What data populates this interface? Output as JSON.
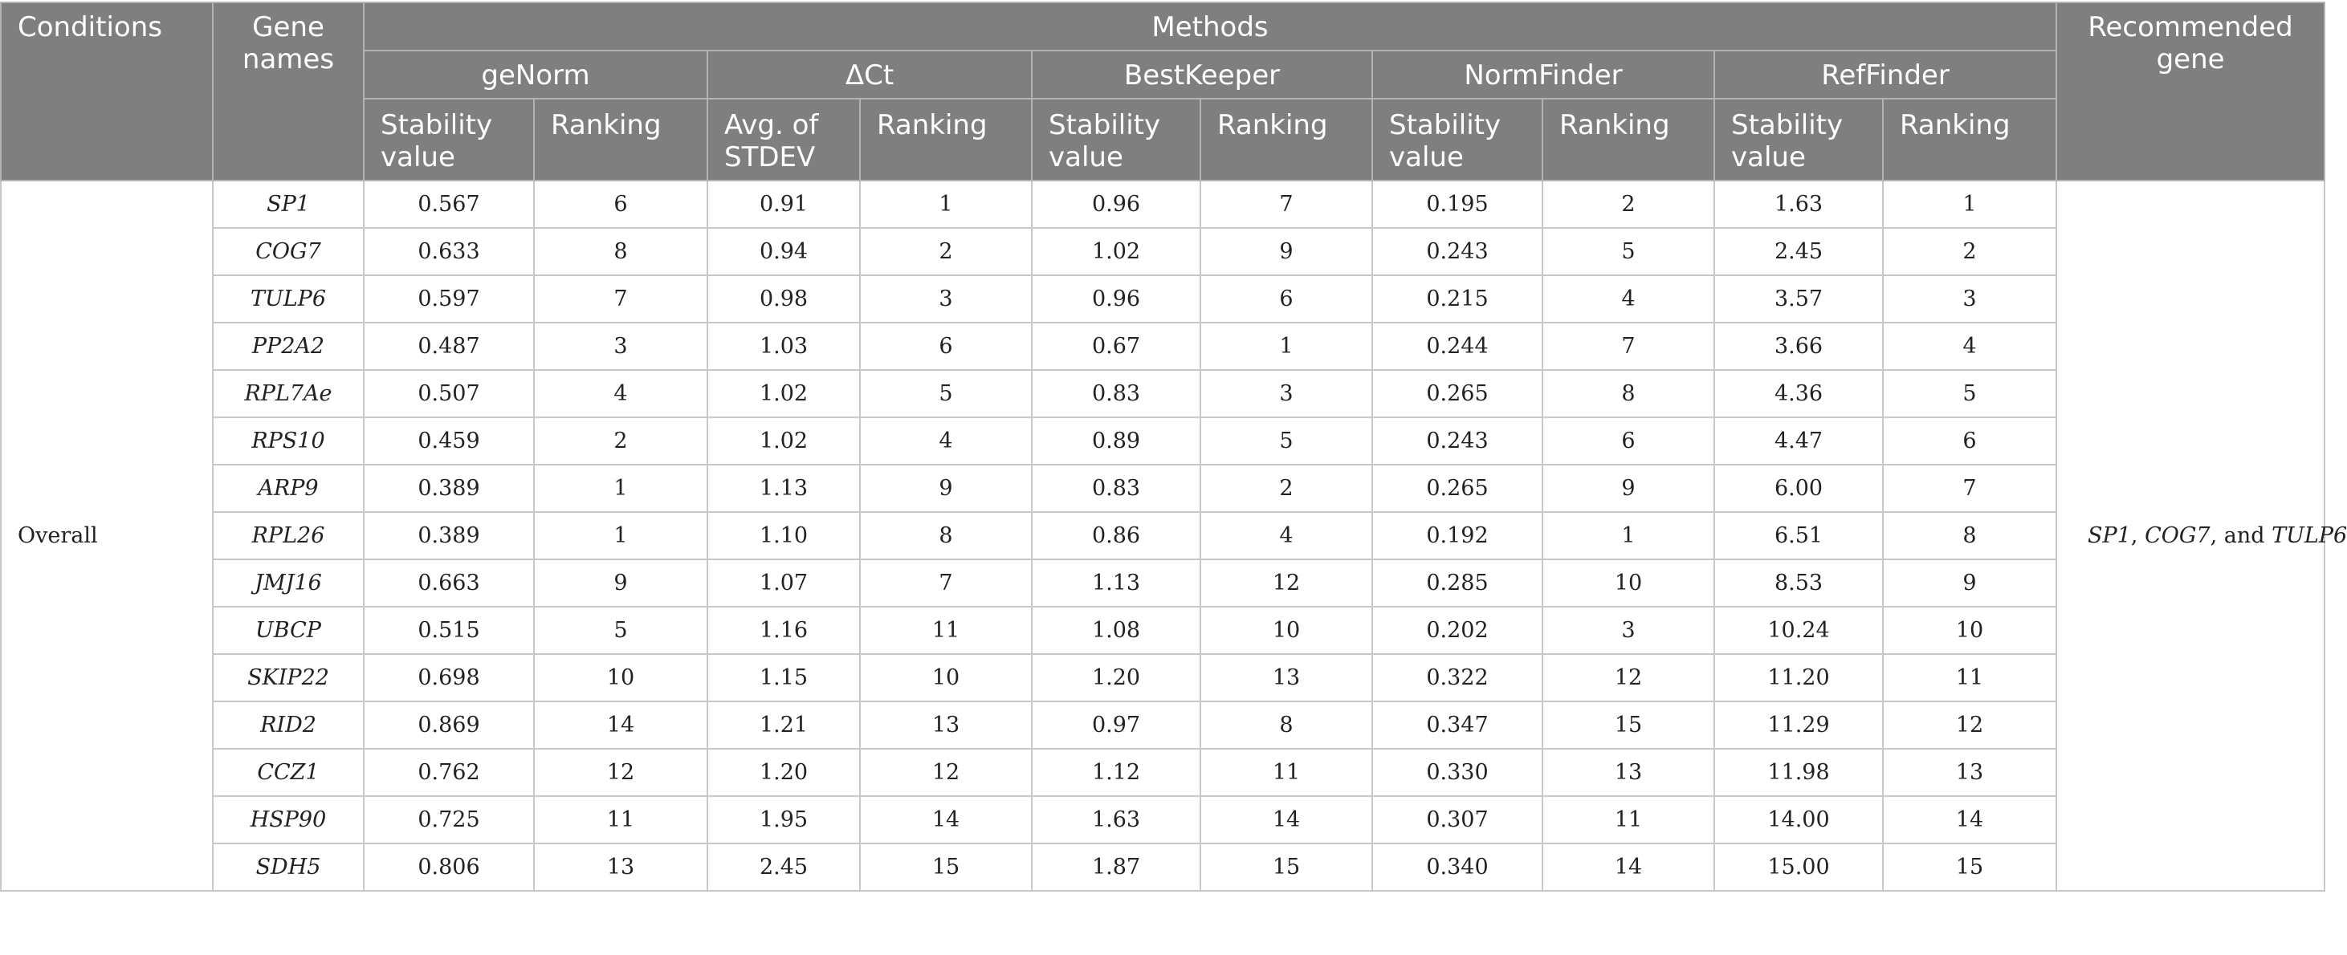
{
  "headers": {
    "conditions": "Conditions",
    "gene_names": "Gene names",
    "methods": "Methods",
    "recommended_gene": "Recommended gene",
    "methods_list": [
      "geNorm",
      "ΔCt",
      "BestKeeper",
      "NormFinder",
      "RefFinder"
    ],
    "sub": {
      "genorm_value": "Stability value",
      "genorm_rank": "Ranking",
      "dct_value": "Avg. of STDEV",
      "dct_rank": "Ranking",
      "bestkeeper_value": "Stability value",
      "bestkeeper_rank": "Ranking",
      "normfinder_value": "Stability value",
      "normfinder_rank": "Ranking",
      "reffinder_value": "Stability value",
      "reffinder_rank": "Ranking"
    }
  },
  "condition": "Overall",
  "recommended": {
    "gene1": "SP1",
    "sep1": ", ",
    "gene2": "COG7",
    "sep2": ", and ",
    "gene3": "TULP6"
  },
  "rows": [
    {
      "gene": "SP1",
      "genorm_value": "0.567",
      "genorm_rank": "6",
      "dct_value": "0.91",
      "dct_rank": "1",
      "bestkeeper_value": "0.96",
      "bestkeeper_rank": "7",
      "normfinder_value": "0.195",
      "normfinder_rank": "2",
      "reffinder_value": "1.63",
      "reffinder_rank": "1"
    },
    {
      "gene": "COG7",
      "genorm_value": "0.633",
      "genorm_rank": "8",
      "dct_value": "0.94",
      "dct_rank": "2",
      "bestkeeper_value": "1.02",
      "bestkeeper_rank": "9",
      "normfinder_value": "0.243",
      "normfinder_rank": "5",
      "reffinder_value": "2.45",
      "reffinder_rank": "2"
    },
    {
      "gene": "TULP6",
      "genorm_value": "0.597",
      "genorm_rank": "7",
      "dct_value": "0.98",
      "dct_rank": "3",
      "bestkeeper_value": "0.96",
      "bestkeeper_rank": "6",
      "normfinder_value": "0.215",
      "normfinder_rank": "4",
      "reffinder_value": "3.57",
      "reffinder_rank": "3"
    },
    {
      "gene": "PP2A2",
      "genorm_value": "0.487",
      "genorm_rank": "3",
      "dct_value": "1.03",
      "dct_rank": "6",
      "bestkeeper_value": "0.67",
      "bestkeeper_rank": "1",
      "normfinder_value": "0.244",
      "normfinder_rank": "7",
      "reffinder_value": "3.66",
      "reffinder_rank": "4"
    },
    {
      "gene": "RPL7Ae",
      "genorm_value": "0.507",
      "genorm_rank": "4",
      "dct_value": "1.02",
      "dct_rank": "5",
      "bestkeeper_value": "0.83",
      "bestkeeper_rank": "3",
      "normfinder_value": "0.265",
      "normfinder_rank": "8",
      "reffinder_value": "4.36",
      "reffinder_rank": "5"
    },
    {
      "gene": "RPS10",
      "genorm_value": "0.459",
      "genorm_rank": "2",
      "dct_value": "1.02",
      "dct_rank": "4",
      "bestkeeper_value": "0.89",
      "bestkeeper_rank": "5",
      "normfinder_value": "0.243",
      "normfinder_rank": "6",
      "reffinder_value": "4.47",
      "reffinder_rank": "6"
    },
    {
      "gene": "ARP9",
      "genorm_value": "0.389",
      "genorm_rank": "1",
      "dct_value": "1.13",
      "dct_rank": "9",
      "bestkeeper_value": "0.83",
      "bestkeeper_rank": "2",
      "normfinder_value": "0.265",
      "normfinder_rank": "9",
      "reffinder_value": "6.00",
      "reffinder_rank": "7"
    },
    {
      "gene": "RPL26",
      "genorm_value": "0.389",
      "genorm_rank": "1",
      "dct_value": "1.10",
      "dct_rank": "8",
      "bestkeeper_value": "0.86",
      "bestkeeper_rank": "4",
      "normfinder_value": "0.192",
      "normfinder_rank": "1",
      "reffinder_value": "6.51",
      "reffinder_rank": "8"
    },
    {
      "gene": "JMJ16",
      "genorm_value": "0.663",
      "genorm_rank": "9",
      "dct_value": "1.07",
      "dct_rank": "7",
      "bestkeeper_value": "1.13",
      "bestkeeper_rank": "12",
      "normfinder_value": "0.285",
      "normfinder_rank": "10",
      "reffinder_value": "8.53",
      "reffinder_rank": "9"
    },
    {
      "gene": "UBCP",
      "genorm_value": "0.515",
      "genorm_rank": "5",
      "dct_value": "1.16",
      "dct_rank": "11",
      "bestkeeper_value": "1.08",
      "bestkeeper_rank": "10",
      "normfinder_value": "0.202",
      "normfinder_rank": "3",
      "reffinder_value": "10.24",
      "reffinder_rank": "10"
    },
    {
      "gene": "SKIP22",
      "genorm_value": "0.698",
      "genorm_rank": "10",
      "dct_value": "1.15",
      "dct_rank": "10",
      "bestkeeper_value": "1.20",
      "bestkeeper_rank": "13",
      "normfinder_value": "0.322",
      "normfinder_rank": "12",
      "reffinder_value": "11.20",
      "reffinder_rank": "11"
    },
    {
      "gene": "RID2",
      "genorm_value": "0.869",
      "genorm_rank": "14",
      "dct_value": "1.21",
      "dct_rank": "13",
      "bestkeeper_value": "0.97",
      "bestkeeper_rank": "8",
      "normfinder_value": "0.347",
      "normfinder_rank": "15",
      "reffinder_value": "11.29",
      "reffinder_rank": "12"
    },
    {
      "gene": "CCZ1",
      "genorm_value": "0.762",
      "genorm_rank": "12",
      "dct_value": "1.20",
      "dct_rank": "12",
      "bestkeeper_value": "1.12",
      "bestkeeper_rank": "11",
      "normfinder_value": "0.330",
      "normfinder_rank": "13",
      "reffinder_value": "11.98",
      "reffinder_rank": "13"
    },
    {
      "gene": "HSP90",
      "genorm_value": "0.725",
      "genorm_rank": "11",
      "dct_value": "1.95",
      "dct_rank": "14",
      "bestkeeper_value": "1.63",
      "bestkeeper_rank": "14",
      "normfinder_value": "0.307",
      "normfinder_rank": "11",
      "reffinder_value": "14.00",
      "reffinder_rank": "14"
    },
    {
      "gene": "SDH5",
      "genorm_value": "0.806",
      "genorm_rank": "13",
      "dct_value": "2.45",
      "dct_rank": "15",
      "bestkeeper_value": "1.87",
      "bestkeeper_rank": "15",
      "normfinder_value": "0.340",
      "normfinder_rank": "14",
      "reffinder_value": "15.00",
      "reffinder_rank": "15"
    }
  ]
}
